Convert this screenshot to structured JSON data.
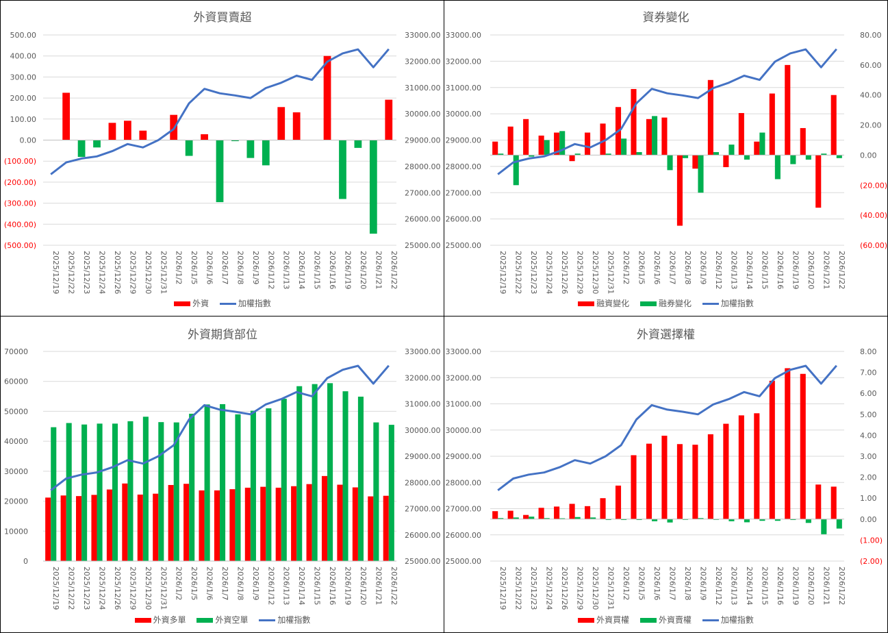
{
  "colors": {
    "red": "#FF0000",
    "green": "#00B050",
    "blue": "#4472C4",
    "grid": "#D9D9D9",
    "text": "#595959"
  },
  "dates": [
    "2025/12/19",
    "2025/12/22",
    "2025/12/23",
    "2025/12/24",
    "2025/12/26",
    "2025/12/29",
    "2025/12/30",
    "2025/12/31",
    "2026/1/2",
    "2026/1/5",
    "2026/1/6",
    "2026/1/7",
    "2026/1/8",
    "2026/1/9",
    "2026/1/12",
    "2026/1/13",
    "2026/1/14",
    "2026/1/15",
    "2026/1/16",
    "2026/1/19",
    "2026/1/20",
    "2026/1/21",
    "2026/1/22"
  ],
  "chart_data": [
    {
      "type": "bar",
      "title": "外資買賣超",
      "categories_ref": "dates",
      "left_axis": {
        "min": -500,
        "max": 500,
        "step": 100,
        "format": "paren2",
        "negative_color": "#FF0000"
      },
      "right_axis": {
        "min": 25000,
        "max": 33000,
        "step": 1000,
        "format": "fixed2"
      },
      "series": [
        {
          "name": "外資",
          "kind": "bar",
          "axis": "left",
          "color_rule": "sign",
          "values": [
            0,
            225,
            -80,
            -35,
            82,
            92,
            45,
            0,
            120,
            -75,
            28,
            -295,
            -5,
            -85,
            -120,
            157,
            132,
            0,
            400,
            -280,
            -37,
            -445,
            192
          ]
        }
      ],
      "line": {
        "name": "加權指數",
        "axis": "right",
        "values": [
          27700,
          28150,
          28300,
          28380,
          28580,
          28850,
          28720,
          29000,
          29420,
          30400,
          30950,
          30780,
          30700,
          30600,
          30980,
          31180,
          31450,
          31290,
          31980,
          32300,
          32450,
          31770,
          32460
        ]
      },
      "legend": [
        "外資",
        "加權指數"
      ]
    },
    {
      "type": "bar",
      "title": "資券變化",
      "categories_ref": "dates",
      "left_axis": {
        "min": 25000,
        "max": 33000,
        "step": 1000,
        "format": "fixed2"
      },
      "right_axis": {
        "min": -60,
        "max": 80,
        "step": 20,
        "format": "paren2",
        "negative_color": "#FF0000"
      },
      "series": [
        {
          "name": "融資變化",
          "kind": "bar",
          "axis": "right",
          "color": "#FF0000",
          "values": [
            9,
            19,
            24,
            13,
            15,
            -4,
            15,
            21,
            32,
            44,
            24,
            25,
            -47,
            -9,
            50,
            -8,
            28,
            9,
            41,
            60,
            18,
            -35,
            40
          ]
        },
        {
          "name": "融券變化",
          "kind": "bar",
          "axis": "right",
          "color": "#00B050",
          "values": [
            1,
            -20,
            -1,
            10,
            16,
            1,
            0,
            1,
            11,
            2,
            26,
            -10,
            -2,
            -25,
            2,
            7,
            -3,
            15,
            -16,
            -6,
            -3,
            1,
            -2
          ]
        }
      ],
      "line": {
        "name": "加權指數",
        "axis": "left",
        "values": [
          27700,
          28150,
          28300,
          28380,
          28580,
          28850,
          28720,
          29000,
          29420,
          30400,
          30950,
          30780,
          30700,
          30600,
          30980,
          31180,
          31450,
          31290,
          31980,
          32300,
          32450,
          31770,
          32460
        ]
      },
      "legend": [
        "融資變化",
        "融券變化",
        "加權指數"
      ]
    },
    {
      "type": "bar",
      "title": "外資期貨部位",
      "categories_ref": "dates",
      "left_axis": {
        "min": 0,
        "max": 70000,
        "step": 10000,
        "format": "int"
      },
      "right_axis": {
        "min": 25000,
        "max": 33000,
        "step": 1000,
        "format": "fixed2"
      },
      "series": [
        {
          "name": "外資多單",
          "kind": "bar",
          "axis": "left",
          "color": "#FF0000",
          "values": [
            21200,
            21900,
            21700,
            22100,
            23900,
            25900,
            22200,
            22500,
            25400,
            25800,
            23600,
            23600,
            24000,
            24500,
            24800,
            24500,
            25000,
            25700,
            28400,
            25500,
            24600,
            21600,
            21800
          ]
        },
        {
          "name": "外資空單",
          "kind": "bar",
          "axis": "left",
          "color": "#00B050",
          "values": [
            44700,
            46100,
            45600,
            45900,
            45900,
            46700,
            48200,
            46400,
            46300,
            49200,
            52300,
            52400,
            49000,
            50200,
            51000,
            54200,
            58400,
            59100,
            59400,
            56700,
            54900,
            46300,
            45500
          ]
        }
      ],
      "line": {
        "name": "加權指數",
        "axis": "right",
        "values": [
          27700,
          28150,
          28300,
          28380,
          28580,
          28850,
          28720,
          29000,
          29420,
          30400,
          30950,
          30780,
          30700,
          30600,
          30980,
          31180,
          31450,
          31290,
          31980,
          32300,
          32450,
          31770,
          32460
        ]
      },
      "legend": [
        "外資多單",
        "外資空單",
        "加權指數"
      ]
    },
    {
      "type": "bar",
      "title": "外資選擇權",
      "categories_ref": "dates",
      "left_axis": {
        "min": 25000,
        "max": 33000,
        "step": 1000,
        "format": "fixed2"
      },
      "right_axis": {
        "min": -2,
        "max": 8,
        "step": 1,
        "format": "paren2",
        "negative_color": "#FF0000"
      },
      "series": [
        {
          "name": "外資買權",
          "kind": "bar",
          "axis": "right",
          "color": "#FF0000",
          "values": [
            0.38,
            0.4,
            0.2,
            0.54,
            0.6,
            0.73,
            0.62,
            1.0,
            1.6,
            3.05,
            3.6,
            3.98,
            3.58,
            3.55,
            4.05,
            4.55,
            4.95,
            5.05,
            6.6,
            7.2,
            6.93,
            1.65,
            1.55
          ]
        },
        {
          "name": "外資賣權",
          "kind": "bar",
          "axis": "right",
          "color": "#00B050",
          "values": [
            0.05,
            0.08,
            0.12,
            0.05,
            0.04,
            0.1,
            0.08,
            -0.04,
            -0.04,
            -0.04,
            -0.1,
            -0.16,
            -0.02,
            0.05,
            -0.02,
            -0.1,
            -0.15,
            -0.08,
            -0.08,
            -0.04,
            -0.18,
            -0.72,
            -0.45
          ]
        }
      ],
      "line": {
        "name": "加權指數",
        "axis": "left",
        "values": [
          27700,
          28150,
          28300,
          28380,
          28580,
          28850,
          28720,
          29000,
          29420,
          30400,
          30950,
          30780,
          30700,
          30600,
          30980,
          31180,
          31450,
          31290,
          31980,
          32300,
          32450,
          31770,
          32460
        ]
      },
      "legend": [
        "外資買權",
        "外資賣權",
        "加權指數"
      ]
    }
  ]
}
